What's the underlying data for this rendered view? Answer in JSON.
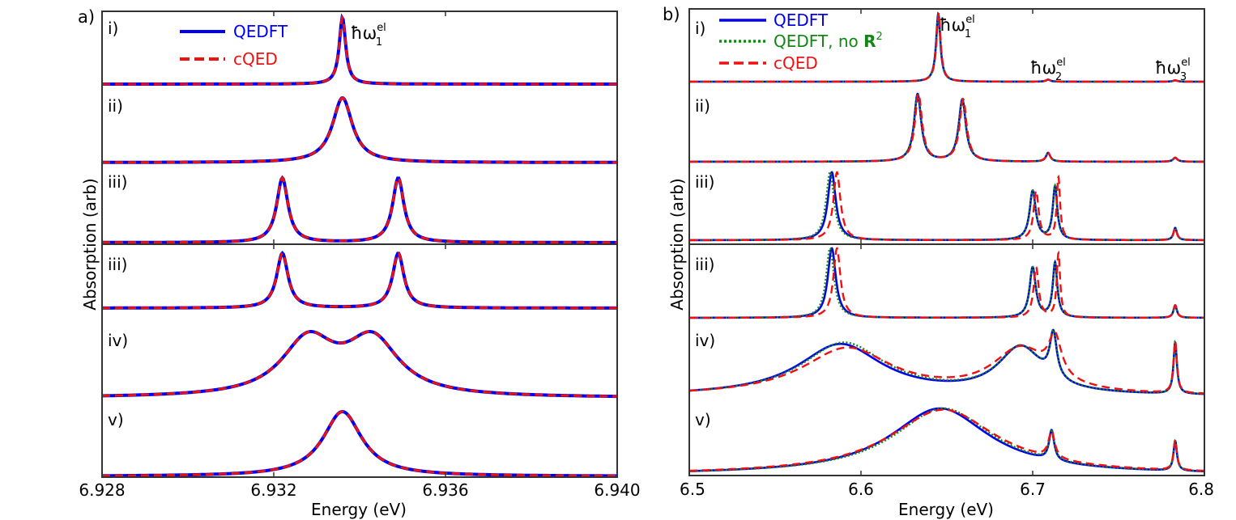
{
  "colors": {
    "qedft": "#0000ee",
    "cqed": "#ee1111",
    "nor2": "#118811",
    "frame": "#333333",
    "text": "#000000"
  },
  "chart_data": [
    {
      "id": "a",
      "type": "line",
      "panel_label": "a)",
      "xlabel": "Energy (eV)",
      "ylabel": "Absorption (arb)",
      "xlim": [
        6.928,
        6.94
      ],
      "xticks": [
        6.928,
        6.932,
        6.936,
        6.94
      ],
      "xtick_labels": [
        "6.928",
        "6.932",
        "6.936",
        "6.940"
      ],
      "legend": [
        {
          "name": "QEDFT",
          "color": "#0000ee",
          "style": "solid"
        },
        {
          "name": "cQED",
          "color": "#ee1111",
          "style": "dashed"
        }
      ],
      "peak_label": {
        "main": "ħω",
        "sup": "el",
        "sub": "1",
        "x": 6.9336
      },
      "blocks": [
        {
          "traces": [
            {
              "label": "i)",
              "gamma": 9e-05,
              "peaks": [
                {
                  "x": 6.9336,
                  "a": 1.0
                }
              ]
            },
            {
              "label": "ii)",
              "gamma": 0.00028,
              "peaks": [
                {
                  "x": 6.9336,
                  "a": 1.0
                }
              ]
            },
            {
              "label": "iii)",
              "gamma": 0.00016,
              "peaks": [
                {
                  "x": 6.9322,
                  "a": 1.0
                },
                {
                  "x": 6.9349,
                  "a": 1.0
                }
              ]
            }
          ]
        },
        {
          "traces": [
            {
              "label": "iii)",
              "gamma": 0.00016,
              "peaks": [
                {
                  "x": 6.9322,
                  "a": 1.0
                },
                {
                  "x": 6.9349,
                  "a": 1.0
                }
              ]
            },
            {
              "label": "iv)",
              "gamma": 0.00075,
              "peaks": [
                {
                  "x": 6.9328,
                  "a": 1.0
                },
                {
                  "x": 6.9343,
                  "a": 1.0
                }
              ]
            },
            {
              "label": "v)",
              "gamma": 0.00055,
              "peaks": [
                {
                  "x": 6.9336,
                  "a": 1.0
                }
              ]
            }
          ]
        }
      ]
    },
    {
      "id": "b",
      "type": "line",
      "panel_label": "b)",
      "xlabel": "Energy (eV)",
      "ylabel": "Absorption (arb)",
      "xlim": [
        6.5,
        6.8
      ],
      "xticks": [
        6.5,
        6.6,
        6.7,
        6.8
      ],
      "xtick_labels": [
        "6.5",
        "6.6",
        "6.7",
        "6.8"
      ],
      "legend": [
        {
          "name": "QEDFT",
          "color": "#0000ee",
          "style": "solid"
        },
        {
          "name": "QEDFT, no ",
          "bold": "R",
          "sup": "2",
          "color": "#118811",
          "style": "dotted"
        },
        {
          "name": "cQED",
          "color": "#ee1111",
          "style": "dashed"
        }
      ],
      "peak_labels": [
        {
          "main": "ħω",
          "sup": "el",
          "sub": "1",
          "x": 6.645
        },
        {
          "main": "ħω",
          "sup": "el",
          "sub": "2",
          "x": 6.709
        },
        {
          "main": "ħω",
          "sup": "el",
          "sub": "3",
          "x": 6.783
        }
      ],
      "blocks": [
        {
          "traces": [
            {
              "label": "i)",
              "qedft": [
                {
                  "x": 6.645,
                  "g": 0.0015,
                  "a": 1.0
                },
                {
                  "x": 6.709,
                  "g": 0.0015,
                  "a": 0.03
                },
                {
                  "x": 6.783,
                  "g": 0.0015,
                  "a": 0.02
                }
              ],
              "nor2": [
                {
                  "x": 6.645,
                  "g": 0.0015,
                  "a": 1.0
                },
                {
                  "x": 6.709,
                  "g": 0.0015,
                  "a": 0.03
                },
                {
                  "x": 6.783,
                  "g": 0.0015,
                  "a": 0.02
                }
              ],
              "cqed": [
                {
                  "x": 6.6452,
                  "g": 0.0015,
                  "a": 1.0
                },
                {
                  "x": 6.709,
                  "g": 0.0015,
                  "a": 0.03
                },
                {
                  "x": 6.783,
                  "g": 0.0015,
                  "a": 0.02
                }
              ]
            },
            {
              "label": "ii)",
              "qedft": [
                {
                  "x": 6.633,
                  "g": 0.0025,
                  "a": 1.0
                },
                {
                  "x": 6.659,
                  "g": 0.0025,
                  "a": 0.92
                },
                {
                  "x": 6.709,
                  "g": 0.0015,
                  "a": 0.13
                },
                {
                  "x": 6.783,
                  "g": 0.0015,
                  "a": 0.06
                }
              ],
              "nor2": [
                {
                  "x": 6.633,
                  "g": 0.0025,
                  "a": 1.0
                },
                {
                  "x": 6.659,
                  "g": 0.0025,
                  "a": 0.92
                },
                {
                  "x": 6.709,
                  "g": 0.0015,
                  "a": 0.13
                },
                {
                  "x": 6.783,
                  "g": 0.0015,
                  "a": 0.06
                }
              ],
              "cqed": [
                {
                  "x": 6.6335,
                  "g": 0.0025,
                  "a": 1.0
                },
                {
                  "x": 6.6595,
                  "g": 0.0025,
                  "a": 0.92
                },
                {
                  "x": 6.709,
                  "g": 0.0015,
                  "a": 0.13
                },
                {
                  "x": 6.783,
                  "g": 0.0015,
                  "a": 0.06
                }
              ]
            },
            {
              "label": "iii)",
              "qedft": [
                {
                  "x": 6.583,
                  "g": 0.0028,
                  "a": 1.0
                },
                {
                  "x": 6.7,
                  "g": 0.0022,
                  "a": 0.72
                },
                {
                  "x": 6.713,
                  "g": 0.0016,
                  "a": 0.78
                },
                {
                  "x": 6.783,
                  "g": 0.0012,
                  "a": 0.18
                }
              ],
              "nor2": [
                {
                  "x": 6.582,
                  "g": 0.0028,
                  "a": 1.0
                },
                {
                  "x": 6.7,
                  "g": 0.0022,
                  "a": 0.72
                },
                {
                  "x": 6.713,
                  "g": 0.0016,
                  "a": 0.78
                },
                {
                  "x": 6.783,
                  "g": 0.0012,
                  "a": 0.18
                }
              ],
              "cqed": [
                {
                  "x": 6.586,
                  "g": 0.0025,
                  "a": 1.0
                },
                {
                  "x": 6.702,
                  "g": 0.0018,
                  "a": 0.72
                },
                {
                  "x": 6.715,
                  "g": 0.0012,
                  "a": 0.92
                },
                {
                  "x": 6.783,
                  "g": 0.0012,
                  "a": 0.18
                }
              ]
            }
          ]
        },
        {
          "traces": [
            {
              "label": "iii)",
              "qedft": [
                {
                  "x": 6.583,
                  "g": 0.0028,
                  "a": 1.0
                },
                {
                  "x": 6.7,
                  "g": 0.0022,
                  "a": 0.72
                },
                {
                  "x": 6.713,
                  "g": 0.0016,
                  "a": 0.78
                },
                {
                  "x": 6.783,
                  "g": 0.0012,
                  "a": 0.18
                }
              ],
              "nor2": [
                {
                  "x": 6.582,
                  "g": 0.0028,
                  "a": 1.0
                },
                {
                  "x": 6.7,
                  "g": 0.0022,
                  "a": 0.72
                },
                {
                  "x": 6.713,
                  "g": 0.0016,
                  "a": 0.78
                },
                {
                  "x": 6.783,
                  "g": 0.0012,
                  "a": 0.18
                }
              ],
              "cqed": [
                {
                  "x": 6.586,
                  "g": 0.0025,
                  "a": 1.0
                },
                {
                  "x": 6.702,
                  "g": 0.0018,
                  "a": 0.72
                },
                {
                  "x": 6.715,
                  "g": 0.0012,
                  "a": 0.92
                },
                {
                  "x": 6.783,
                  "g": 0.0012,
                  "a": 0.18
                }
              ]
            },
            {
              "label": "iv)",
              "qedft": [
                {
                  "x": 6.588,
                  "g": 0.03,
                  "a": 0.72
                },
                {
                  "x": 6.693,
                  "g": 0.016,
                  "a": 0.65
                },
                {
                  "x": 6.712,
                  "g": 0.0025,
                  "a": 0.62
                },
                {
                  "x": 6.783,
                  "g": 0.0012,
                  "a": 0.72
                }
              ],
              "nor2": [
                {
                  "x": 6.59,
                  "g": 0.03,
                  "a": 0.74
                },
                {
                  "x": 6.693,
                  "g": 0.016,
                  "a": 0.65
                },
                {
                  "x": 6.712,
                  "g": 0.0025,
                  "a": 0.62
                },
                {
                  "x": 6.783,
                  "g": 0.0012,
                  "a": 0.72
                }
              ],
              "cqed": [
                {
                  "x": 6.592,
                  "g": 0.032,
                  "a": 0.66
                },
                {
                  "x": 6.693,
                  "g": 0.02,
                  "a": 0.62
                },
                {
                  "x": 6.713,
                  "g": 0.0045,
                  "a": 0.55
                },
                {
                  "x": 6.783,
                  "g": 0.0012,
                  "a": 0.72
                }
              ]
            },
            {
              "label": "v)",
              "qedft": [
                {
                  "x": 6.646,
                  "g": 0.035,
                  "a": 1.0
                },
                {
                  "x": 6.711,
                  "g": 0.0018,
                  "a": 0.45
                },
                {
                  "x": 6.783,
                  "g": 0.0012,
                  "a": 0.45
                }
              ],
              "nor2": [
                {
                  "x": 6.648,
                  "g": 0.035,
                  "a": 1.0
                },
                {
                  "x": 6.711,
                  "g": 0.0018,
                  "a": 0.45
                },
                {
                  "x": 6.783,
                  "g": 0.0012,
                  "a": 0.45
                }
              ],
              "cqed": [
                {
                  "x": 6.648,
                  "g": 0.038,
                  "a": 0.98
                },
                {
                  "x": 6.711,
                  "g": 0.0022,
                  "a": 0.4
                },
                {
                  "x": 6.783,
                  "g": 0.0012,
                  "a": 0.45
                }
              ]
            }
          ]
        }
      ]
    }
  ]
}
